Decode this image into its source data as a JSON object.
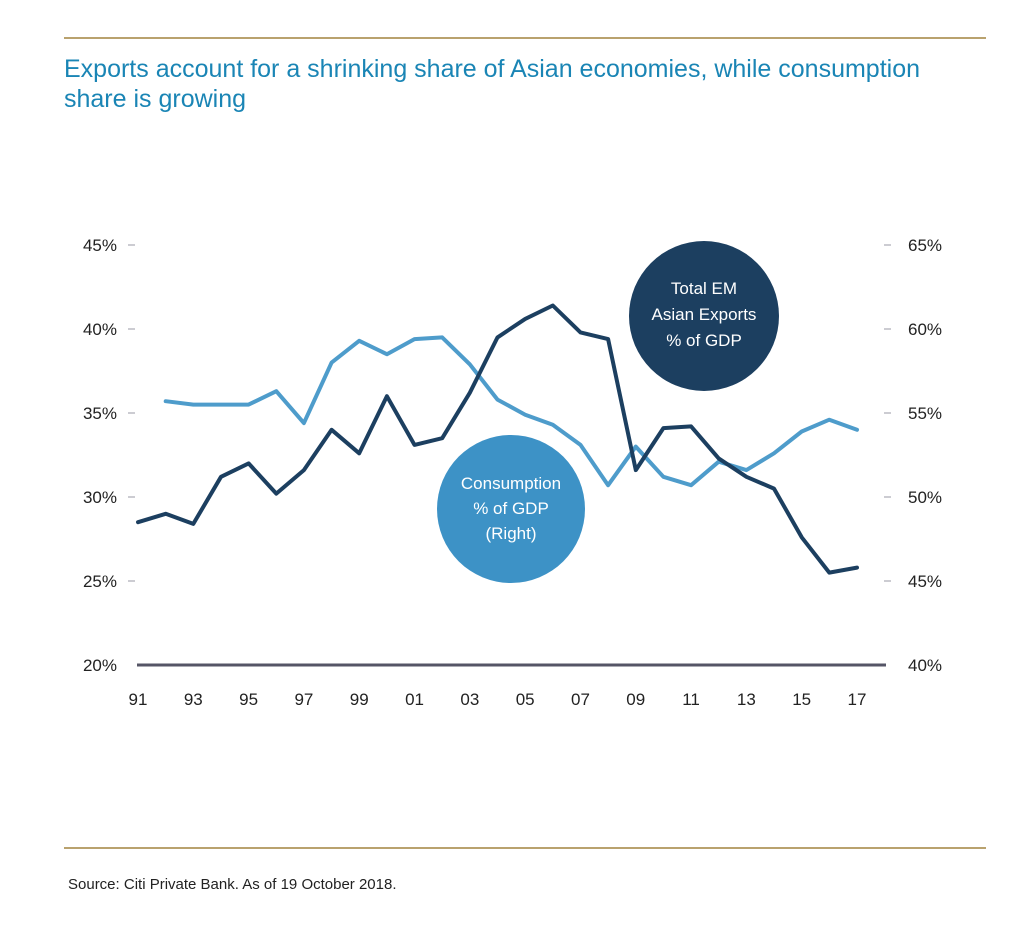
{
  "title": "Exports account for a shrinking share of Asian economies, while consumption share is growing",
  "source": "Source: Citi Private Bank. As of 19 October 2018.",
  "colors": {
    "exports": "#1c3f60",
    "consumption": "#4e9ccb",
    "consumption_bubble": "#3d92c6",
    "axis": "#555566",
    "rule": "#b9a26e",
    "title": "#1a85b5"
  },
  "chart_data": {
    "type": "line",
    "grid": false,
    "legend": "bubble labels on chart",
    "x_tick_labels": [
      "91",
      "93",
      "95",
      "97",
      "99",
      "01",
      "03",
      "05",
      "07",
      "09",
      "11",
      "13",
      "15",
      "17"
    ],
    "x_range": [
      1991,
      2017
    ],
    "y_left": {
      "ticks": [
        "20%",
        "25%",
        "30%",
        "35%",
        "40%",
        "45%"
      ],
      "range": [
        20,
        45
      ]
    },
    "y_right": {
      "ticks": [
        "40%",
        "45%",
        "50%",
        "55%",
        "60%",
        "65%"
      ],
      "range": [
        40,
        65
      ]
    },
    "series": [
      {
        "name": "Total EM Asian Exports % of GDP",
        "axis": "left",
        "x": [
          1991,
          1992,
          1993,
          1994,
          1995,
          1996,
          1997,
          1998,
          1999,
          2000,
          2001,
          2002,
          2003,
          2004,
          2005,
          2006,
          2007,
          2008,
          2009,
          2010,
          2011,
          2012,
          2013,
          2014,
          2015,
          2016,
          2017
        ],
        "values": [
          28.5,
          29.0,
          28.4,
          31.2,
          32.0,
          30.2,
          31.6,
          34.0,
          32.6,
          36.0,
          33.1,
          33.5,
          36.2,
          39.5,
          40.6,
          41.4,
          39.8,
          39.4,
          31.6,
          34.1,
          34.2,
          32.3,
          31.2,
          30.5,
          27.6,
          25.5,
          25.8
        ]
      },
      {
        "name": "Consumption % of GDP (Right)",
        "axis": "right",
        "x": [
          1992,
          1993,
          1994,
          1995,
          1996,
          1997,
          1998,
          1999,
          2000,
          2001,
          2002,
          2003,
          2004,
          2005,
          2006,
          2007,
          2008,
          2009,
          2010,
          2011,
          2012,
          2013,
          2014,
          2015,
          2016,
          2017
        ],
        "values": [
          55.7,
          55.5,
          55.5,
          55.5,
          56.3,
          54.4,
          58.0,
          59.3,
          58.5,
          59.4,
          59.5,
          57.9,
          55.8,
          54.9,
          54.3,
          53.1,
          50.7,
          53.0,
          51.2,
          50.7,
          52.1,
          51.6,
          52.6,
          53.9,
          54.6,
          54.0
        ]
      }
    ],
    "annotations": [
      {
        "series": 0,
        "lines": [
          "Total EM",
          "Asian Exports",
          "% of GDP"
        ]
      },
      {
        "series": 1,
        "lines": [
          "Consumption",
          "% of GDP",
          "(Right)"
        ]
      }
    ]
  }
}
